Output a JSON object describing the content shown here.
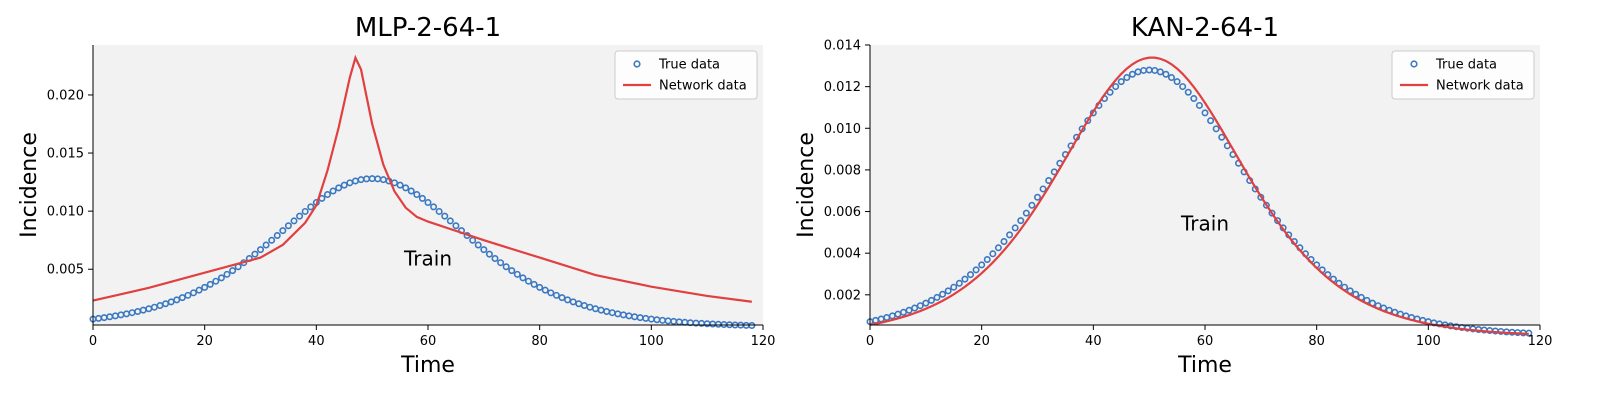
{
  "chart_data": [
    {
      "type": "line",
      "title": "MLP-2-64-1",
      "xlabel": "Time",
      "ylabel": "Incidence",
      "xlim": [
        0,
        120
      ],
      "ylim": [
        0.0002,
        0.0243
      ],
      "xticks": [
        0,
        20,
        40,
        60,
        80,
        100,
        120
      ],
      "yticks": [
        0.005,
        0.01,
        0.015,
        0.02
      ],
      "ytick_labels": [
        "0.005",
        "0.010",
        "0.015",
        "0.020"
      ],
      "grid": false,
      "legend_position": "top-right",
      "annotation": {
        "text": "Train",
        "x": 60,
        "y": 0.0053
      },
      "series": [
        {
          "name": "True data",
          "style": "markers",
          "color": "#3a78c2",
          "x_range": [
            0,
            118
          ],
          "x_step": 1,
          "curve": {
            "base": 0.0,
            "peak": 0.0128,
            "peak_x": 50,
            "k": 0.085
          }
        },
        {
          "name": "Network data",
          "style": "line",
          "color": "#e04040",
          "x": [
            0,
            10,
            20,
            30,
            34,
            38,
            40,
            42,
            44,
            46,
            47,
            48,
            50,
            52,
            54,
            56,
            58,
            60,
            65,
            70,
            80,
            90,
            100,
            110,
            118
          ],
          "y": [
            0.0023,
            0.0034,
            0.0047,
            0.006,
            0.0071,
            0.009,
            0.0105,
            0.0135,
            0.0172,
            0.0215,
            0.0232,
            0.0222,
            0.0175,
            0.014,
            0.0117,
            0.0103,
            0.0095,
            0.0091,
            0.0083,
            0.0075,
            0.006,
            0.0045,
            0.0035,
            0.0027,
            0.0022
          ]
        }
      ]
    },
    {
      "type": "line",
      "title": "KAN-2-64-1",
      "xlabel": "Time",
      "ylabel": "Incidence",
      "xlim": [
        0,
        120
      ],
      "ylim": [
        0.00055,
        0.014
      ],
      "xticks": [
        0,
        20,
        40,
        60,
        80,
        100,
        120
      ],
      "yticks": [
        0.002,
        0.004,
        0.006,
        0.008,
        0.01,
        0.012,
        0.014
      ],
      "ytick_labels": [
        "0.002",
        "0.004",
        "0.006",
        "0.008",
        "0.010",
        "0.012",
        "0.014"
      ],
      "grid": false,
      "legend_position": "top-right",
      "annotation": {
        "text": "Train",
        "x": 60,
        "y": 0.0051
      },
      "series": [
        {
          "name": "True data",
          "style": "markers",
          "color": "#3a78c2",
          "x_range": [
            0,
            118
          ],
          "x_step": 1,
          "curve": {
            "base": 0.0,
            "peak": 0.0128,
            "peak_x": 50,
            "k": 0.085
          }
        },
        {
          "name": "Network data",
          "style": "line",
          "color": "#e04040",
          "x_range": [
            0,
            118
          ],
          "x_step": 1,
          "curve": {
            "base": 0.0,
            "peak": 0.0134,
            "peak_x": 50.5,
            "k": 0.09
          }
        }
      ]
    }
  ]
}
